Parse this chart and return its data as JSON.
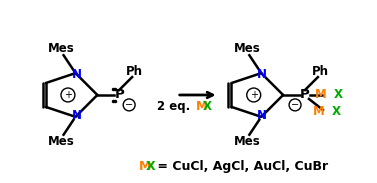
{
  "fig_width": 3.77,
  "fig_height": 1.83,
  "dpi": 100,
  "bg_color": "#ffffff",
  "black": "#000000",
  "blue": "#0000ff",
  "orange": "#ff8000",
  "green": "#00aa00",
  "purple": "#800080",
  "font_family": "Arial",
  "bottom_label_M": "MX",
  "bottom_label_rest": " = CuCl, AgCl, AuCl, CuBr",
  "arrow_label_2eq": "2 eq. ",
  "arrow_label_MX": "MX"
}
